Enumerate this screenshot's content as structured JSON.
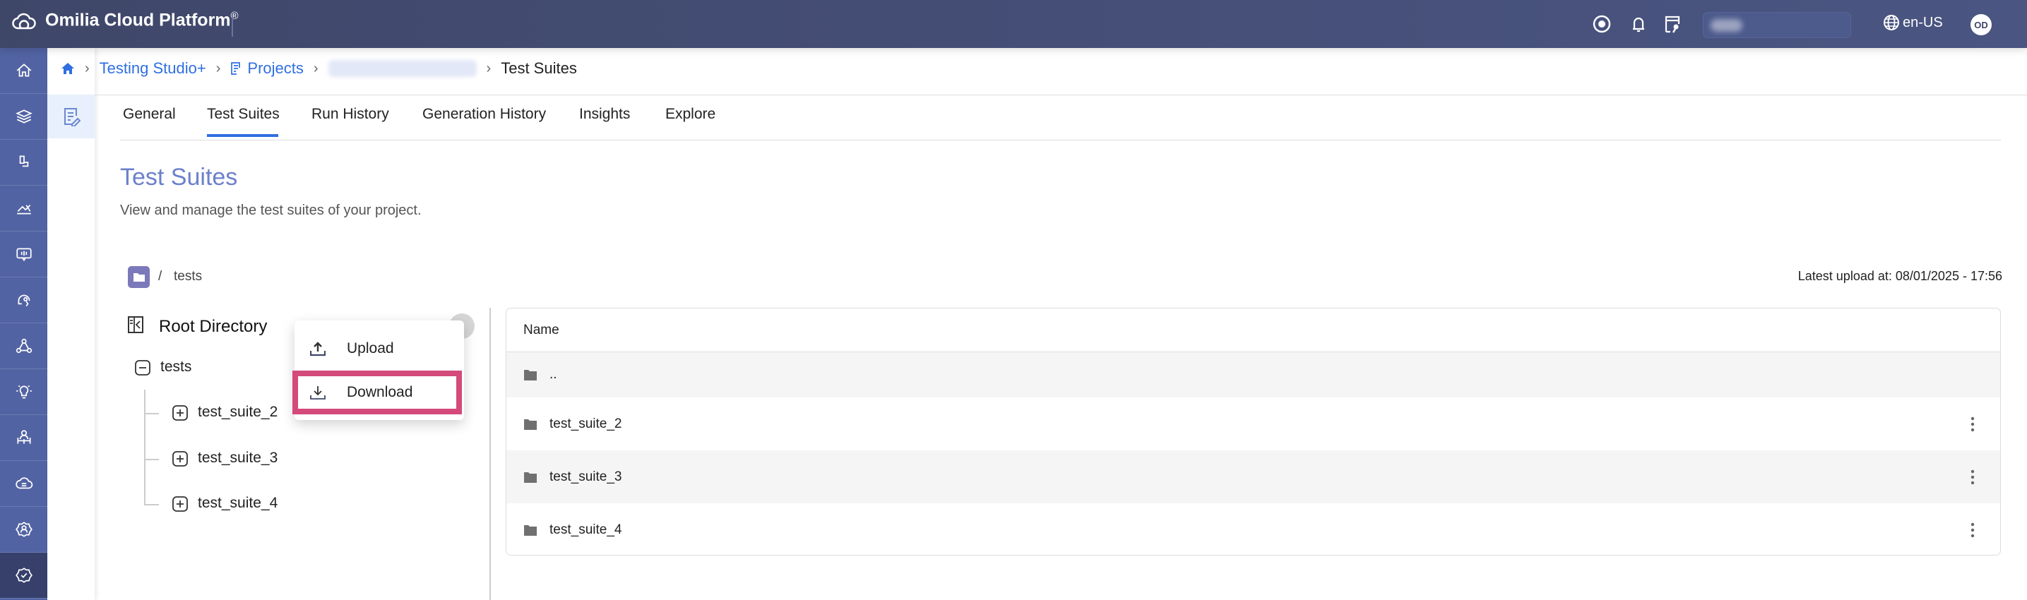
{
  "app": {
    "title": "Omilia Cloud Platform",
    "reg": "®",
    "language": "en-US",
    "avatar_initials": "OD"
  },
  "topbar_icons": [
    "support-icon",
    "bell-icon",
    "license-icon"
  ],
  "sidebar": {
    "items": [
      "home-icon",
      "layers-icon",
      "phone-icon",
      "analytics-icon",
      "monitor-icon",
      "headset-icon",
      "network-icon",
      "bulb-icon",
      "people-icon",
      "cloud-icon",
      "user-settings-icon",
      "settings-check-icon"
    ],
    "active_index": 11
  },
  "breadcrumb": {
    "items": [
      "Testing Studio+",
      "Projects"
    ],
    "current": "Test Suites"
  },
  "tabs": [
    {
      "label": "General"
    },
    {
      "label": "Test Suites",
      "active": true
    },
    {
      "label": "Run History"
    },
    {
      "label": "Generation History"
    },
    {
      "label": "Insights"
    },
    {
      "label": "Explore"
    }
  ],
  "page": {
    "title": "Test Suites",
    "subtitle": "View and manage the test suites of your project."
  },
  "path": {
    "separator": "/",
    "folder": "tests"
  },
  "latest_upload": "Latest upload at: 08/01/2025 - 17:56",
  "tree": {
    "title": "Root Directory",
    "root": "tests",
    "children": [
      "test_suite_2",
      "test_suite_3",
      "test_suite_4"
    ]
  },
  "context_menu": {
    "items": [
      "Upload",
      "Download"
    ],
    "highlighted": "Download",
    "highlight_color": "#d44a7a"
  },
  "table": {
    "header": "Name",
    "rows": [
      "..",
      "test_suite_2",
      "test_suite_3",
      "test_suite_4"
    ]
  },
  "colors": {
    "accent": "#2f6fe0",
    "title": "#6b80cc",
    "sidebar": "#5263a3",
    "topbar": "#414a6e"
  }
}
